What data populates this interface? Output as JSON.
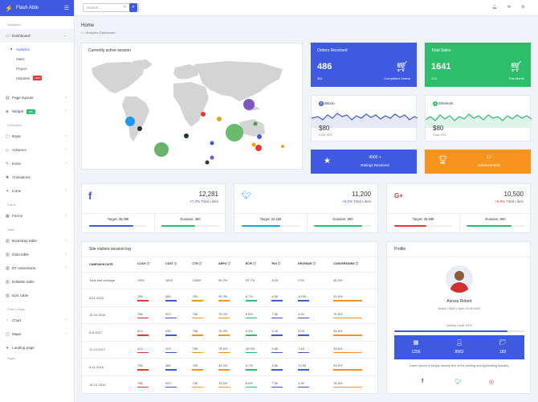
{
  "brand": {
    "name": "Flash Able"
  },
  "sidebar": {
    "sec_nav": "Navigation",
    "sec_ui": "Ui Element",
    "sec_forms": "Forms",
    "sec_table": "Table",
    "sec_chart": "Chart & Maps",
    "sec_pages": "Pages",
    "dashboard": "Dashboard",
    "sub": [
      "Analytics",
      "Sales",
      "Project",
      "Helpdesk"
    ],
    "helpdesk_badge": "NEW",
    "page_layouts": "Page layouts",
    "widget": "Widget",
    "widget_badge": "100+",
    "ui": [
      "Basic",
      "Advance",
      "Extra",
      "Animations",
      "Icons"
    ],
    "forms": "Forms",
    "tables": [
      "Bootstrap table",
      "Data table",
      "DT extensions",
      "Editable table",
      "Epic table"
    ],
    "charts": [
      "Chart",
      "Maps",
      "Landing page"
    ]
  },
  "header": {
    "search_placeholder": "Search . . ."
  },
  "breadcrumb": {
    "title": "Home",
    "current": "Analytics Dashboard"
  },
  "map": {
    "title": "Currently active session"
  },
  "orders": {
    "title": "Orders Received",
    "value": "486",
    "sub": "351",
    "label": "Completed Orders",
    "color": "#3d5ae0"
  },
  "sales": {
    "title": "Total Sales",
    "value": "1641",
    "sub": "213",
    "label": "This Month",
    "color": "#2dbe6c"
  },
  "bitcoin": {
    "name": "Bitcoin",
    "value": "$80",
    "goal": "Goal: $75"
  },
  "ethereum": {
    "name": "Ethereum",
    "value": "$80",
    "goal": "Goal: $75"
  },
  "ratings": {
    "value": "4000 +",
    "label": "Ratings Received"
  },
  "achievements": {
    "value": "17",
    "label": "Achievements"
  },
  "social": [
    {
      "value": "12,281",
      "pct": "+7.2%",
      "pct_text": "Total Likes",
      "target": "Target: 35,098",
      "duration": "Duration: 350",
      "color": "#3d5ae0"
    },
    {
      "value": "11,200",
      "pct": "+6.2%",
      "pct_text": "Total Likes",
      "target": "Target: 34,185",
      "duration": "Duration: 800",
      "color": "#1da1f2"
    },
    {
      "value": "10,500",
      "pct": "+5.9%",
      "pct_text": "Total Likes",
      "target": "Target: 25,998",
      "duration": "Duration: 900",
      "color": "#e53935"
    }
  ],
  "sessions": {
    "title": "Site visitors session log",
    "cols": [
      "CAMPAIGN DATE",
      "CLICK",
      "COST",
      "CTR",
      "ARPU",
      "ECPI",
      "ROI",
      "REVENUE",
      "CONVERSIONS"
    ],
    "rows": [
      [
        "Total and average",
        "1300",
        "1625",
        "14005",
        "95.2%",
        "29.7%",
        "8.25",
        "2:30",
        "45.5%"
      ],
      [
        "8-11-2016",
        "786",
        "485",
        "769",
        "45.3%",
        "6.7%",
        "8.56",
        "10:55",
        "33.8%"
      ],
      [
        "15-10-2016",
        "786",
        "523",
        "736",
        "78.3%",
        "6.6%",
        "7.56",
        "4:30",
        "76.8%"
      ],
      [
        "8-8-2017",
        "624",
        "436",
        "756",
        "78.3%",
        "6.4%",
        "8.45",
        "9:05",
        "33.8%"
      ],
      [
        "11-12-2017",
        "423",
        "123",
        "756",
        "78.6%",
        "45.6%",
        "6.85",
        "7:45",
        "33.8%"
      ],
      [
        "8-11-2016",
        "786",
        "485",
        "769",
        "45.3%",
        "6.7%",
        "8.56",
        "10:55",
        "33.8%"
      ],
      [
        "15-10-2016",
        "786",
        "523",
        "736",
        "78.3%",
        "6.6%",
        "7.56",
        "4:30",
        "76.8%"
      ]
    ]
  },
  "profile": {
    "title": "Profile",
    "name": "Alessa Robert",
    "meta": "Active | Male | Born 23.05.1992",
    "activity": "Activity Level: 87%",
    "stats": [
      "1256",
      "8562",
      "189"
    ],
    "bio": "Lorem Ipsum is simply dummy text of the printing and typesetting industry."
  }
}
